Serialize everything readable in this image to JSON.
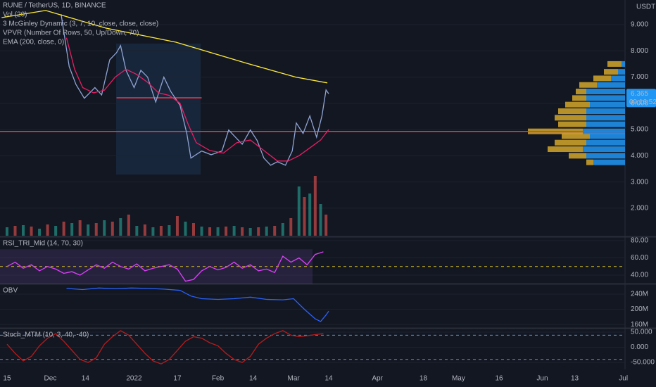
{
  "chart_data": [
    {
      "type": "line",
      "title": "RUNE / TetherUS, 1D, BINANCE",
      "axis_unit": "USDT",
      "xlim": [
        -2.6,
        228.6
      ],
      "ylim": [
        0.95,
        9.94
      ],
      "yticks": [
        {
          "value": 2,
          "label": "2.000"
        },
        {
          "value": 3,
          "label": "3.000"
        },
        {
          "value": 4,
          "label": "4.000"
        },
        {
          "value": 5,
          "label": "5.000"
        },
        {
          "value": 6,
          "label": "6.000"
        },
        {
          "value": 7,
          "label": "7.000"
        },
        {
          "value": 8,
          "label": "8.000"
        },
        {
          "value": 9,
          "label": "9.000"
        }
      ],
      "last_price": 6.365,
      "countdown": "09:16:52",
      "series": [
        {
          "color": "#90a4d4",
          "x": [
            20,
            23,
            25.5,
            28.6,
            32.5,
            35,
            38,
            40.5,
            42,
            44,
            47,
            49.5,
            52,
            55,
            58,
            60.5,
            64,
            66.5,
            68,
            72,
            75.5,
            79.5,
            82,
            84.5,
            87,
            90,
            92.5,
            95,
            97.5,
            100,
            103,
            105.5,
            107,
            109.5,
            112,
            114.5,
            116.5,
            118,
            119
          ],
          "values": [
            9.4,
            7.4,
            6.72,
            6.19,
            6.6,
            6.32,
            7.66,
            7.93,
            8.2,
            7.26,
            6.6,
            7.26,
            7.0,
            6.05,
            7.0,
            6.46,
            5.92,
            4.85,
            3.91,
            4.18,
            4.04,
            4.18,
            4.98,
            4.71,
            4.44,
            4.98,
            4.58,
            3.91,
            3.64,
            3.77,
            3.64,
            4.18,
            5.25,
            4.85,
            5.52,
            4.71,
            5.52,
            6.51,
            6.365
          ]
        },
        {
          "name": "3 McGinley Dynamic (3, 7, 10, close, close, close)",
          "color": "#e91e63",
          "x": [
            22,
            25,
            28,
            32,
            36,
            40,
            44,
            48,
            52,
            56,
            60,
            64,
            67,
            70,
            75,
            80,
            85,
            90,
            95,
            100,
            104,
            108,
            112,
            116,
            119
          ],
          "values": [
            8.5,
            7.3,
            6.6,
            6.4,
            6.5,
            7.0,
            7.3,
            7.1,
            6.8,
            6.4,
            6.3,
            6.0,
            5.2,
            4.5,
            4.2,
            4.1,
            4.5,
            4.6,
            4.2,
            3.8,
            3.8,
            4.0,
            4.3,
            4.6,
            5.0
          ]
        },
        {
          "name": "EMA (200, close, 0)",
          "color": "#ffeb3b",
          "x": [
            -2,
            14.3,
            36.5,
            62.5,
            88.5,
            106.8,
            118.5
          ],
          "values": [
            9.27,
            9.54,
            8.87,
            8.33,
            7.53,
            7.0,
            6.78
          ]
        }
      ],
      "hlines": [
        {
          "value": 4.93,
          "color": "#f23645"
        },
        {
          "value": 6.21,
          "x": [
            40.5,
            72
          ],
          "color": "#f23645"
        }
      ],
      "volume": {
        "name": "Vol (20)",
        "series": [
          {
            "color": "#26a69a",
            "x": [
              0,
              6,
              12,
              18,
              24,
              30,
              36,
              42,
              48,
              54,
              60,
              66,
              72,
              78,
              84,
              90,
              96,
              102,
              108,
              112,
              116
            ],
            "values": [
              12,
              15,
              10,
              14,
              18,
              16,
              22,
              25,
              14,
              12,
              15,
              20,
              13,
              12,
              14,
              11,
              13,
              18,
              70,
              60,
              45
            ]
          },
          {
            "color": "#ef5350",
            "x": [
              3,
              9,
              15,
              21,
              27,
              33,
              39,
              45,
              51,
              57,
              63,
              69,
              75,
              81,
              87,
              93,
              99,
              105,
              110,
              114,
              118
            ],
            "values": [
              14,
              13,
              16,
              20,
              22,
              18,
              20,
              30,
              16,
              14,
              28,
              18,
              12,
              13,
              12,
              12,
              14,
              25,
              55,
              85,
              30
            ]
          }
        ]
      },
      "profile": {
        "name": "VPVR (Number Of Rows, 50, Up/Down, 70)",
        "up_color": "#2196f3",
        "down_color": "#d4a62a",
        "levels": [
          3.75,
          4.0,
          4.25,
          4.5,
          4.75,
          4.93,
          5.2,
          5.45,
          5.7,
          5.95,
          6.2,
          6.45,
          6.7,
          6.95,
          7.2,
          7.5
        ],
        "up": [
          45,
          55,
          60,
          55,
          50,
          60,
          55,
          55,
          55,
          50,
          55,
          55,
          40,
          20,
          10,
          5
        ],
        "down": [
          10,
          25,
          50,
          45,
          40,
          78,
          40,
          45,
          40,
          35,
          20,
          15,
          25,
          25,
          20,
          20
        ]
      }
    },
    {
      "type": "line",
      "title": "RSI_TRI_Mid (14, 70, 30)",
      "xlim": [
        -2.6,
        228.6
      ],
      "ylim": [
        31,
        83.3
      ],
      "yticks": [
        {
          "value": 40,
          "label": "40.00"
        },
        {
          "value": 60,
          "label": "60.00"
        },
        {
          "value": 80,
          "label": "80.00"
        }
      ],
      "band": [
        70,
        30
      ],
      "midline": 50,
      "series": [
        {
          "color": "#e040fb",
          "x": [
            0,
            3,
            6,
            9,
            12,
            15,
            18,
            21,
            24,
            27,
            30,
            33,
            36,
            39,
            42,
            45,
            48,
            51,
            54,
            57,
            60,
            63,
            66,
            69,
            72,
            75,
            78,
            81,
            84,
            87,
            90,
            93,
            96,
            99,
            102,
            105,
            108,
            111,
            114,
            117
          ],
          "values": [
            50,
            55,
            48,
            52,
            45,
            50,
            47,
            42,
            44,
            40,
            46,
            52,
            48,
            55,
            50,
            47,
            53,
            45,
            48,
            50,
            52,
            47,
            33,
            35,
            45,
            50,
            46,
            49,
            55,
            48,
            52,
            45,
            47,
            43,
            62,
            55,
            60,
            52,
            64,
            67
          ]
        }
      ]
    },
    {
      "type": "line",
      "title": "OBV",
      "xlim": [
        -2.6,
        228.6
      ],
      "ylim": [
        153000000,
        264000000
      ],
      "yticks": [
        {
          "value": 160000000,
          "label": "160M"
        },
        {
          "value": 200000000,
          "label": "200M"
        },
        {
          "value": 240000000,
          "label": "240M"
        }
      ],
      "series": [
        {
          "color": "#2962ff",
          "x": [
            22,
            28,
            34,
            40,
            46,
            52,
            58,
            64,
            68,
            72,
            78,
            84,
            90,
            96,
            102,
            106,
            110,
            114,
            116,
            118,
            119
          ],
          "values": [
            255000000,
            252000000,
            256000000,
            254000000,
            256000000,
            255000000,
            253000000,
            250000000,
            235000000,
            228000000,
            226000000,
            228000000,
            232000000,
            226000000,
            225000000,
            228000000,
            200000000,
            175000000,
            168000000,
            185000000,
            195000000
          ]
        }
      ]
    },
    {
      "type": "line",
      "title": "Stoch_MTM (10, 3, 40, -40)",
      "xlim": [
        -2.6,
        228.6
      ],
      "ylim": [
        -73,
        59.3
      ],
      "yticks": [
        {
          "value": -50,
          "label": "-50.000"
        },
        {
          "value": 0,
          "label": "0.000"
        },
        {
          "value": 50,
          "label": "50.000"
        }
      ],
      "levels": [
        40,
        -40
      ],
      "xticks": [
        {
          "value": 0,
          "label": "15"
        },
        {
          "value": 16,
          "label": "Dec"
        },
        {
          "value": 29,
          "label": "14"
        },
        {
          "value": 47,
          "label": "2022"
        },
        {
          "value": 63,
          "label": "17"
        },
        {
          "value": 78,
          "label": "Feb"
        },
        {
          "value": 91,
          "label": "14"
        },
        {
          "value": 106,
          "label": "Mar"
        },
        {
          "value": 119,
          "label": "14"
        },
        {
          "value": 137,
          "label": "Apr"
        },
        {
          "value": 154,
          "label": "18"
        },
        {
          "value": 167,
          "label": "May"
        },
        {
          "value": 182,
          "label": "16"
        },
        {
          "value": 198,
          "label": "Jun"
        },
        {
          "value": 210,
          "label": "13"
        },
        {
          "value": 228,
          "label": "Jul"
        }
      ],
      "series": [
        {
          "color": "#b71c1c",
          "x": [
            0,
            3,
            6,
            9,
            12,
            15,
            18,
            21,
            24,
            27,
            30,
            33,
            36,
            39,
            42,
            45,
            48,
            51,
            54,
            57,
            60,
            63,
            66,
            69,
            72,
            75,
            78,
            81,
            84,
            87,
            90,
            93,
            96,
            99,
            102,
            105,
            108,
            111,
            114,
            117
          ],
          "values": [
            10,
            -20,
            -45,
            -30,
            5,
            30,
            45,
            20,
            -10,
            -40,
            -50,
            -35,
            10,
            35,
            55,
            40,
            10,
            -20,
            -45,
            -55,
            -40,
            -10,
            20,
            35,
            30,
            15,
            5,
            -20,
            -40,
            -50,
            -30,
            10,
            30,
            45,
            55,
            40,
            35,
            38,
            42,
            45
          ]
        }
      ]
    }
  ]
}
